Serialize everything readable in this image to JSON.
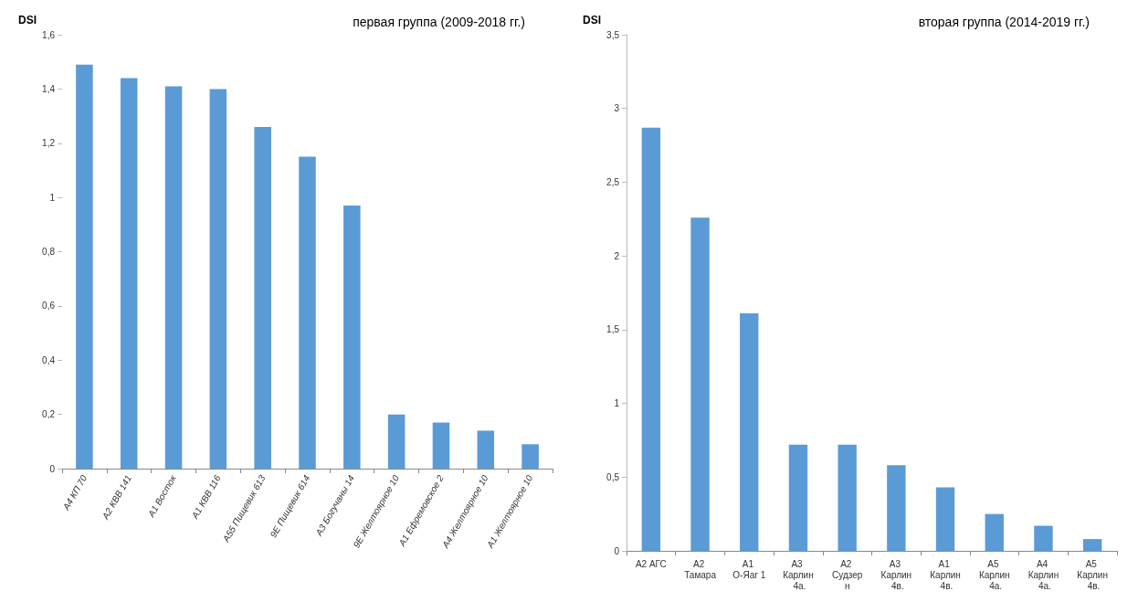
{
  "chart_data": [
    {
      "type": "bar",
      "title": "первая группа (2009-2018 гг.)",
      "ylabel": "DSI",
      "categories": [
        "А4 КП 70",
        "А2 КВВ 141",
        "А1 Восток",
        "А1 КВВ 116",
        "А55 Пищевик 613",
        "9Е Пищевик 614",
        "А3 Богучаны 14",
        "9Е Желтоярное 10",
        "А1 Ефремовское 2",
        "А4 Желтоярное 10",
        "А1 Желтоярное 10"
      ],
      "values": [
        1.49,
        1.44,
        1.41,
        1.4,
        1.26,
        1.15,
        0.97,
        0.2,
        0.17,
        0.14,
        0.09
      ],
      "color": "#5b9bd5",
      "ylim": [
        0,
        1.6
      ],
      "yticks": [
        0,
        {
          "value": 0.2,
          "label": "0,2"
        },
        {
          "value": 0.4,
          "label": "0,4"
        },
        {
          "value": 0.6,
          "label": "0,6"
        },
        {
          "value": 0.8,
          "label": "0,8"
        },
        1,
        {
          "value": 1.2,
          "label": "1,2"
        },
        {
          "value": 1.4,
          "label": "1,4"
        },
        {
          "value": 1.6,
          "label": "1,6"
        }
      ],
      "grid": false
    },
    {
      "type": "bar",
      "title": "вторая группа (2014-2019 гг.)",
      "ylabel": "DSI",
      "categories": [
        "А2 АГС",
        "А2 Тамара",
        "А1 О-Яаг 1",
        "А3 Карлин 4а.",
        "А2 Судзерн",
        "А3 Карлин 4в.",
        "А1 Карлин 4в.",
        "А5 Карлин 4а.",
        "А4 Карлин 4а.",
        "А5 Карлин 4в."
      ],
      "values": [
        2.87,
        2.26,
        1.61,
        0.72,
        0.72,
        0.58,
        0.43,
        0.25,
        0.17,
        0.08
      ],
      "color": "#5b9bd5",
      "ylim": [
        0,
        3.5
      ],
      "yticks": [
        0,
        {
          "value": 0.5,
          "label": "0,5"
        },
        1,
        {
          "value": 1.5,
          "label": "1,5"
        },
        2,
        {
          "value": 2.5,
          "label": "2,5"
        },
        3,
        {
          "value": 3.5,
          "label": "3,5"
        }
      ],
      "grid": false
    }
  ]
}
